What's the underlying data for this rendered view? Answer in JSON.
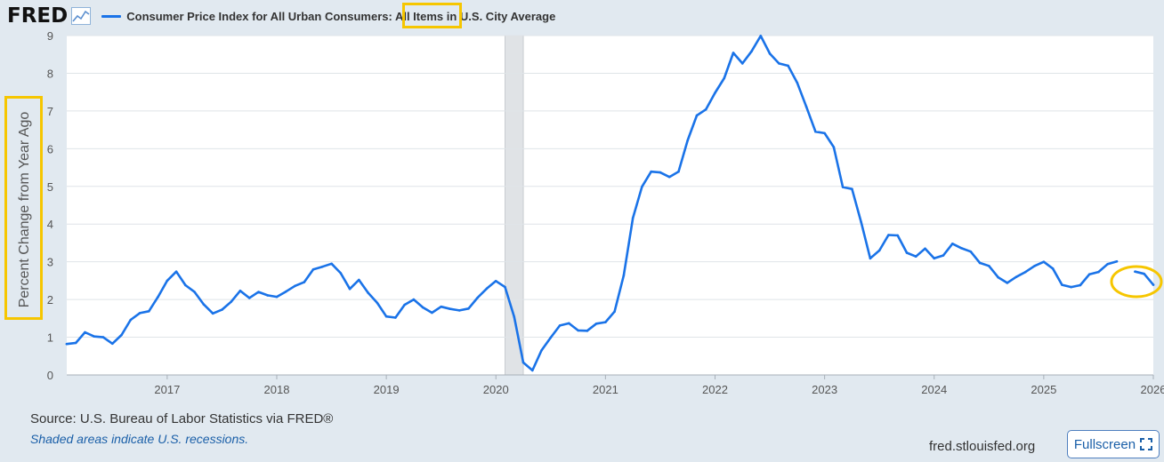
{
  "header": {
    "logo": "FRED",
    "logo_icon": "line-chart-icon",
    "legend_label_part1": "Consumer Price Index for All Urban Consumers: ",
    "legend_label_highlight": "All Items",
    "legend_label_part2": " in U.S. City Average"
  },
  "footer": {
    "source": "Source: U.S. Bureau of Labor Statistics via FRED®",
    "note": "Shaded areas indicate U.S. recessions.",
    "url": "fred.stlouisfed.org",
    "fullscreen_label": "Fullscreen",
    "fullscreen_icon": "expand-icon"
  },
  "colors": {
    "series": "#1a73e8",
    "highlight": "#f6c600",
    "background": "#e1e9f0",
    "plot": "#ffffff",
    "recession": "#e0e3e6"
  },
  "chart_data": {
    "type": "line",
    "ylabel": "Percent Change from Year Ago",
    "ylim": [
      0,
      9
    ],
    "yticks": [
      "0",
      "1",
      "2",
      "3",
      "4",
      "5",
      "6",
      "7",
      "8",
      "9"
    ],
    "xlim": [
      "2016-02",
      "2026-01"
    ],
    "xticks": [
      "2017",
      "2018",
      "2019",
      "2020",
      "2021",
      "2022",
      "2023",
      "2024",
      "2025",
      "2026"
    ],
    "grid": true,
    "recessions": [
      {
        "start": "2020-02",
        "end": "2020-04"
      }
    ],
    "annotations": [
      "highlight-box: All Items",
      "highlight-box: y-axis label",
      "circle: latest data after gap"
    ],
    "series": [
      {
        "name": "Consumer Price Index for All Urban Consumers: All Items in U.S. City Average",
        "points": [
          [
            "2016-02",
            0.82
          ],
          [
            "2016-03",
            0.85
          ],
          [
            "2016-04",
            1.13
          ],
          [
            "2016-05",
            1.02
          ],
          [
            "2016-06",
            1.0
          ],
          [
            "2016-07",
            0.83
          ],
          [
            "2016-08",
            1.06
          ],
          [
            "2016-09",
            1.46
          ],
          [
            "2016-10",
            1.64
          ],
          [
            "2016-11",
            1.69
          ],
          [
            "2016-12",
            2.07
          ],
          [
            "2017-01",
            2.5
          ],
          [
            "2017-02",
            2.74
          ],
          [
            "2017-03",
            2.38
          ],
          [
            "2017-04",
            2.2
          ],
          [
            "2017-05",
            1.87
          ],
          [
            "2017-06",
            1.63
          ],
          [
            "2017-07",
            1.73
          ],
          [
            "2017-08",
            1.94
          ],
          [
            "2017-09",
            2.23
          ],
          [
            "2017-10",
            2.04
          ],
          [
            "2017-11",
            2.2
          ],
          [
            "2017-12",
            2.11
          ],
          [
            "2018-01",
            2.07
          ],
          [
            "2018-02",
            2.21
          ],
          [
            "2018-03",
            2.36
          ],
          [
            "2018-04",
            2.46
          ],
          [
            "2018-05",
            2.8
          ],
          [
            "2018-06",
            2.87
          ],
          [
            "2018-07",
            2.95
          ],
          [
            "2018-08",
            2.7
          ],
          [
            "2018-09",
            2.28
          ],
          [
            "2018-10",
            2.52
          ],
          [
            "2018-11",
            2.18
          ],
          [
            "2018-12",
            1.91
          ],
          [
            "2019-01",
            1.55
          ],
          [
            "2019-02",
            1.52
          ],
          [
            "2019-03",
            1.86
          ],
          [
            "2019-04",
            2.0
          ],
          [
            "2019-05",
            1.79
          ],
          [
            "2019-06",
            1.65
          ],
          [
            "2019-07",
            1.81
          ],
          [
            "2019-08",
            1.75
          ],
          [
            "2019-09",
            1.71
          ],
          [
            "2019-10",
            1.76
          ],
          [
            "2019-11",
            2.05
          ],
          [
            "2019-12",
            2.29
          ],
          [
            "2020-01",
            2.49
          ],
          [
            "2020-02",
            2.33
          ],
          [
            "2020-03",
            1.54
          ],
          [
            "2020-04",
            0.33
          ],
          [
            "2020-05",
            0.12
          ],
          [
            "2020-06",
            0.65
          ],
          [
            "2020-07",
            0.99
          ],
          [
            "2020-08",
            1.31
          ],
          [
            "2020-09",
            1.37
          ],
          [
            "2020-10",
            1.18
          ],
          [
            "2020-11",
            1.17
          ],
          [
            "2020-12",
            1.36
          ],
          [
            "2021-01",
            1.4
          ],
          [
            "2021-02",
            1.68
          ],
          [
            "2021-03",
            2.64
          ],
          [
            "2021-04",
            4.16
          ],
          [
            "2021-05",
            4.99
          ],
          [
            "2021-06",
            5.39
          ],
          [
            "2021-07",
            5.37
          ],
          [
            "2021-08",
            5.25
          ],
          [
            "2021-09",
            5.39
          ],
          [
            "2021-10",
            6.22
          ],
          [
            "2021-11",
            6.88
          ],
          [
            "2021-12",
            7.04
          ],
          [
            "2022-01",
            7.48
          ],
          [
            "2022-02",
            7.87
          ],
          [
            "2022-03",
            8.54
          ],
          [
            "2022-04",
            8.26
          ],
          [
            "2022-05",
            8.58
          ],
          [
            "2022-06",
            8.99
          ],
          [
            "2022-07",
            8.52
          ],
          [
            "2022-08",
            8.26
          ],
          [
            "2022-09",
            8.2
          ],
          [
            "2022-10",
            7.75
          ],
          [
            "2022-11",
            7.11
          ],
          [
            "2022-12",
            6.45
          ],
          [
            "2023-01",
            6.41
          ],
          [
            "2023-02",
            6.04
          ],
          [
            "2023-03",
            4.98
          ],
          [
            "2023-04",
            4.93
          ],
          [
            "2023-05",
            4.05
          ],
          [
            "2023-06",
            3.09
          ],
          [
            "2023-07",
            3.3
          ],
          [
            "2023-08",
            3.71
          ],
          [
            "2023-09",
            3.7
          ],
          [
            "2023-10",
            3.24
          ],
          [
            "2023-11",
            3.14
          ],
          [
            "2023-12",
            3.35
          ],
          [
            "2024-01",
            3.09
          ],
          [
            "2024-02",
            3.17
          ],
          [
            "2024-03",
            3.48
          ],
          [
            "2024-04",
            3.36
          ],
          [
            "2024-05",
            3.27
          ],
          [
            "2024-06",
            2.97
          ],
          [
            "2024-07",
            2.89
          ],
          [
            "2024-08",
            2.59
          ],
          [
            "2024-09",
            2.44
          ],
          [
            "2024-10",
            2.6
          ],
          [
            "2024-11",
            2.73
          ],
          [
            "2024-12",
            2.89
          ],
          [
            "2025-01",
            3.0
          ],
          [
            "2025-02",
            2.82
          ],
          [
            "2025-03",
            2.39
          ],
          [
            "2025-04",
            2.33
          ],
          [
            "2025-05",
            2.38
          ],
          [
            "2025-06",
            2.67
          ],
          [
            "2025-07",
            2.73
          ],
          [
            "2025-08",
            2.94
          ],
          [
            "2025-09",
            3.01
          ],
          null,
          [
            "2025-11",
            2.74
          ],
          [
            "2025-12",
            2.68
          ],
          [
            "2026-01",
            2.39
          ]
        ]
      }
    ]
  }
}
